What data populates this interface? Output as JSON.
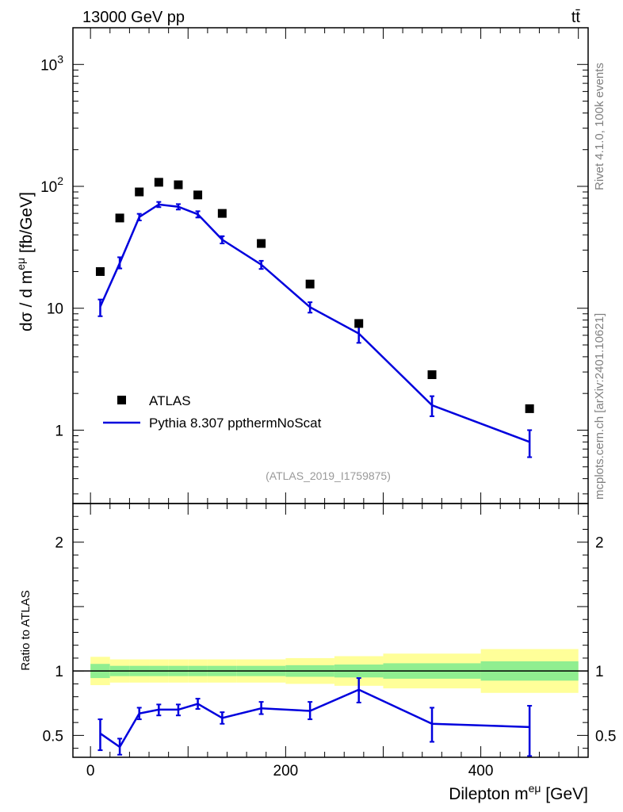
{
  "header": {
    "left": "13000 GeV pp",
    "right": "tt̄"
  },
  "side_labels": {
    "rivet": "Rivet 4.1.0,  100k events",
    "mcplots": "mcplots.cern.ch [arXiv:2401.10621]"
  },
  "colors": {
    "data": "#000000",
    "mc": "#0000dd",
    "band_inner": "#90ee90",
    "band_outer": "#ffff99"
  },
  "chart_data": [
    {
      "type": "scatter",
      "panel": "main",
      "ylabel": "dσ / d m^eμ [fb/GeV]",
      "yscale": "log",
      "ylim": [
        0.25,
        2000
      ],
      "xlim": [
        -18,
        510
      ],
      "ytick_labels": [
        "1",
        "10",
        "10²",
        "10³"
      ],
      "annotation": "(ATLAS_2019_I1759875)",
      "legend": {
        "position": "bottom-left",
        "data_label": "ATLAS",
        "mc_label": "Pythia 8.307 ppthermNoScat"
      },
      "x": [
        10,
        30,
        50,
        70,
        90,
        110,
        135,
        175,
        225,
        275,
        350,
        450
      ],
      "series": [
        {
          "name": "ATLAS",
          "style": "markers",
          "values": [
            20,
            55,
            90,
            108,
            103,
            85,
            60,
            34,
            15.8,
            7.5,
            2.85,
            1.5
          ]
        },
        {
          "name": "Pythia 8.307 ppthermNoScat",
          "style": "line",
          "values": [
            10.3,
            23.5,
            56,
            71,
            68,
            59,
            36.5,
            22.8,
            10.2,
            6.2,
            1.6,
            0.8
          ],
          "err_low": [
            8.6,
            21.2,
            52.5,
            67.5,
            64.5,
            55.5,
            34,
            21,
            9.2,
            5.2,
            1.3,
            0.6
          ],
          "err_high": [
            11.8,
            26.2,
            59.5,
            74.5,
            71.5,
            62.5,
            39,
            24.5,
            11.2,
            7.2,
            1.9,
            1.0
          ]
        }
      ]
    },
    {
      "type": "line",
      "panel": "ratio",
      "ylabel": "Ratio to ATLAS",
      "xlabel": "Dilepton m^eμ [GeV]",
      "ylim": [
        0.33,
        2.3
      ],
      "xlim": [
        -18,
        510
      ],
      "xtick_labels": [
        "0",
        "200",
        "400"
      ],
      "ytick_labels": [
        "0.5",
        "1",
        "2"
      ],
      "reference_line": 1.0,
      "bands": {
        "edges": [
          0,
          20,
          40,
          60,
          80,
          100,
          120,
          150,
          200,
          250,
          300,
          400,
          500
        ],
        "inner": [
          0.055,
          0.04,
          0.04,
          0.04,
          0.04,
          0.04,
          0.04,
          0.04,
          0.045,
          0.05,
          0.06,
          0.075
        ],
        "outer": [
          0.11,
          0.09,
          0.09,
          0.09,
          0.09,
          0.09,
          0.09,
          0.09,
          0.1,
          0.115,
          0.135,
          0.17
        ]
      },
      "x": [
        10,
        30,
        50,
        70,
        90,
        110,
        135,
        175,
        225,
        275,
        350,
        450
      ],
      "values": [
        0.515,
        0.41,
        0.67,
        0.7,
        0.7,
        0.745,
        0.635,
        0.71,
        0.69,
        0.855,
        0.59,
        0.565
      ],
      "err_low": [
        0.385,
        0.35,
        0.625,
        0.655,
        0.655,
        0.705,
        0.59,
        0.665,
        0.625,
        0.755,
        0.45,
        0.34
      ],
      "err_high": [
        0.625,
        0.475,
        0.715,
        0.74,
        0.74,
        0.785,
        0.68,
        0.76,
        0.76,
        0.945,
        0.715,
        0.73
      ]
    }
  ]
}
